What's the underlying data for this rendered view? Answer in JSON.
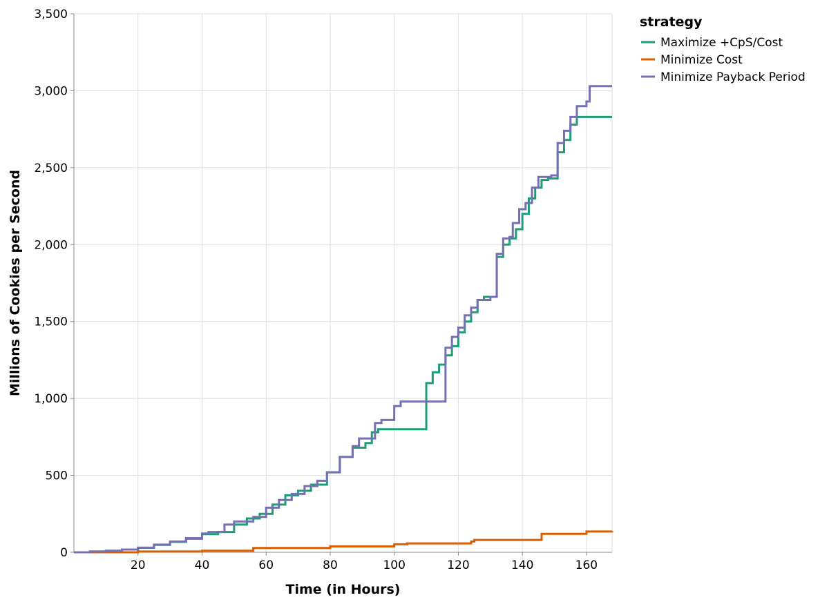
{
  "chart_data": {
    "type": "line",
    "interpolation": "step",
    "xlabel": "Time (in Hours)",
    "ylabel": "Millions of Cookies per Second",
    "xlim": [
      0,
      168
    ],
    "ylim": [
      0,
      3500
    ],
    "x_ticks": [
      20,
      40,
      60,
      80,
      100,
      120,
      140,
      160
    ],
    "y_ticks": [
      0,
      500,
      1000,
      1500,
      2000,
      2500,
      3000,
      3500
    ],
    "x_tick_labels": [
      "20",
      "40",
      "60",
      "80",
      "100",
      "120",
      "140",
      "160"
    ],
    "y_tick_labels": [
      "0",
      "500",
      "1,000",
      "1,500",
      "2,000",
      "2,500",
      "3,000",
      "3,500"
    ],
    "grid": true,
    "legend": {
      "title": "strategy",
      "position": "right"
    },
    "series": [
      {
        "name": "Maximize +CpS/Cost",
        "color": "#1b9e77",
        "points": [
          [
            0,
            0
          ],
          [
            5,
            5
          ],
          [
            10,
            10
          ],
          [
            15,
            18
          ],
          [
            20,
            30
          ],
          [
            25,
            48
          ],
          [
            30,
            68
          ],
          [
            35,
            88
          ],
          [
            40,
            118
          ],
          [
            45,
            132
          ],
          [
            50,
            135
          ],
          [
            50,
            180
          ],
          [
            54,
            220
          ],
          [
            58,
            250
          ],
          [
            62,
            310
          ],
          [
            66,
            370
          ],
          [
            70,
            400
          ],
          [
            74,
            440
          ],
          [
            79,
            460
          ],
          [
            79,
            520
          ],
          [
            83,
            620
          ],
          [
            87,
            680
          ],
          [
            91,
            710
          ],
          [
            93,
            780
          ],
          [
            95,
            800
          ],
          [
            100,
            800
          ],
          [
            105,
            800
          ],
          [
            110,
            800
          ],
          [
            110,
            1100
          ],
          [
            112,
            1170
          ],
          [
            114,
            1220
          ],
          [
            116,
            1280
          ],
          [
            118,
            1340
          ],
          [
            120,
            1430
          ],
          [
            122,
            1500
          ],
          [
            124,
            1560
          ],
          [
            126,
            1640
          ],
          [
            128,
            1660
          ],
          [
            130,
            1660
          ],
          [
            132,
            1660
          ],
          [
            132,
            1920
          ],
          [
            134,
            2000
          ],
          [
            136,
            2040
          ],
          [
            138,
            2100
          ],
          [
            140,
            2200
          ],
          [
            142,
            2300
          ],
          [
            144,
            2370
          ],
          [
            146,
            2420
          ],
          [
            148,
            2430
          ],
          [
            151,
            2430
          ],
          [
            151,
            2600
          ],
          [
            153,
            2680
          ],
          [
            155,
            2780
          ],
          [
            157,
            2830
          ],
          [
            162,
            2830
          ],
          [
            168,
            2830
          ]
        ]
      },
      {
        "name": "Minimize Cost",
        "color": "#d95f02",
        "points": [
          [
            0,
            0
          ],
          [
            20,
            5
          ],
          [
            40,
            10
          ],
          [
            56,
            18
          ],
          [
            56,
            28
          ],
          [
            80,
            38
          ],
          [
            100,
            52
          ],
          [
            104,
            58
          ],
          [
            124,
            70
          ],
          [
            125,
            80
          ],
          [
            146,
            95
          ],
          [
            146,
            120
          ],
          [
            160,
            135
          ],
          [
            168,
            138
          ]
        ]
      },
      {
        "name": "Minimize Payback Period",
        "color": "#7570b3",
        "points": [
          [
            0,
            0
          ],
          [
            5,
            5
          ],
          [
            10,
            10
          ],
          [
            15,
            18
          ],
          [
            20,
            30
          ],
          [
            25,
            50
          ],
          [
            30,
            70
          ],
          [
            35,
            92
          ],
          [
            40,
            122
          ],
          [
            42,
            132
          ],
          [
            47,
            132
          ],
          [
            47,
            180
          ],
          [
            50,
            200
          ],
          [
            56,
            230
          ],
          [
            60,
            290
          ],
          [
            64,
            340
          ],
          [
            68,
            380
          ],
          [
            72,
            430
          ],
          [
            76,
            465
          ],
          [
            79,
            470
          ],
          [
            79,
            520
          ],
          [
            83,
            620
          ],
          [
            87,
            690
          ],
          [
            89,
            740
          ],
          [
            94,
            840
          ],
          [
            96,
            860
          ],
          [
            100,
            860
          ],
          [
            100,
            950
          ],
          [
            102,
            980
          ],
          [
            110,
            980
          ],
          [
            116,
            980
          ],
          [
            116,
            1330
          ],
          [
            118,
            1400
          ],
          [
            120,
            1460
          ],
          [
            122,
            1540
          ],
          [
            124,
            1590
          ],
          [
            126,
            1640
          ],
          [
            130,
            1660
          ],
          [
            132,
            1660
          ],
          [
            132,
            1940
          ],
          [
            134,
            2040
          ],
          [
            136,
            2050
          ],
          [
            137,
            2140
          ],
          [
            139,
            2230
          ],
          [
            141,
            2270
          ],
          [
            143,
            2370
          ],
          [
            145,
            2440
          ],
          [
            149,
            2450
          ],
          [
            151,
            2450
          ],
          [
            151,
            2660
          ],
          [
            153,
            2740
          ],
          [
            155,
            2830
          ],
          [
            157,
            2900
          ],
          [
            160,
            2930
          ],
          [
            161,
            3030
          ],
          [
            168,
            3030
          ]
        ]
      }
    ]
  }
}
